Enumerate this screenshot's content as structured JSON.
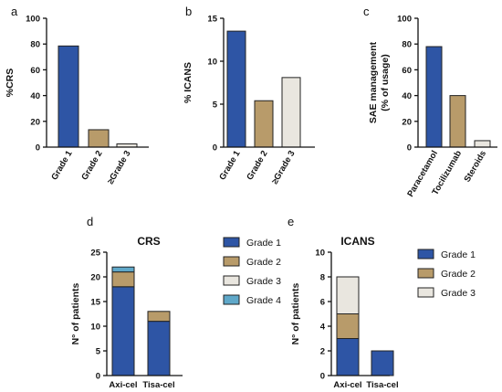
{
  "chart_data": [
    {
      "panel": "a",
      "type": "bar",
      "ylabel": "%CRS",
      "ylim": [
        0,
        100
      ],
      "yticks": [
        0,
        20,
        40,
        60,
        80,
        100
      ],
      "categories": [
        "Grade 1",
        "Grade 2",
        "≥Grade 3"
      ],
      "values": [
        78.5,
        13.5,
        2.5
      ],
      "colors": [
        "#2e55a5",
        "#b89b6a",
        "#e9e6df"
      ]
    },
    {
      "panel": "b",
      "type": "bar",
      "ylabel": "% ICANS",
      "ylim": [
        0,
        15
      ],
      "yticks": [
        0,
        5,
        10,
        15
      ],
      "categories": [
        "Grade 1",
        "Grade 2",
        "≥Grade 3"
      ],
      "values": [
        13.5,
        5.4,
        8.1
      ],
      "colors": [
        "#2e55a5",
        "#b89b6a",
        "#e9e6df"
      ]
    },
    {
      "panel": "c",
      "type": "bar",
      "ylabel": "SAE management",
      "ylabel2": "(% of usage)",
      "ylim": [
        0,
        100
      ],
      "yticks": [
        0,
        20,
        40,
        60,
        80,
        100
      ],
      "categories": [
        "Paracetamol",
        "Tocilizumab",
        "Steroids"
      ],
      "values": [
        78,
        40,
        5
      ],
      "colors": [
        "#2e55a5",
        "#b89b6a",
        "#e9e6df"
      ]
    },
    {
      "panel": "d",
      "type": "bar",
      "stacked": true,
      "title": "CRS",
      "ylabel": "N° of patients",
      "ylim": [
        0,
        25
      ],
      "yticks": [
        0,
        5,
        10,
        15,
        20,
        25
      ],
      "categories": [
        "Axi-cel",
        "Tisa-cel"
      ],
      "series": [
        {
          "name": "Grade 1",
          "values": [
            18,
            11
          ],
          "color": "#2e55a5"
        },
        {
          "name": "Grade 2",
          "values": [
            3,
            2
          ],
          "color": "#b89b6a"
        },
        {
          "name": "Grade 3",
          "values": [
            0,
            0
          ],
          "color": "#e9e6df"
        },
        {
          "name": "Grade 4",
          "values": [
            1,
            0
          ],
          "color": "#5fa8c9"
        }
      ],
      "legend": "right"
    },
    {
      "panel": "e",
      "type": "bar",
      "stacked": true,
      "title": "ICANS",
      "ylabel": "N° of patients",
      "ylim": [
        0,
        10
      ],
      "yticks": [
        0,
        2,
        4,
        6,
        8,
        10
      ],
      "categories": [
        "Axi-cel",
        "Tisa-cel"
      ],
      "series": [
        {
          "name": "Grade 1",
          "values": [
            3,
            2
          ],
          "color": "#2e55a5"
        },
        {
          "name": "Grade 2",
          "values": [
            2,
            0
          ],
          "color": "#b89b6a"
        },
        {
          "name": "Grade 3",
          "values": [
            3,
            0
          ],
          "color": "#e9e6df"
        }
      ],
      "legend": "right"
    }
  ]
}
